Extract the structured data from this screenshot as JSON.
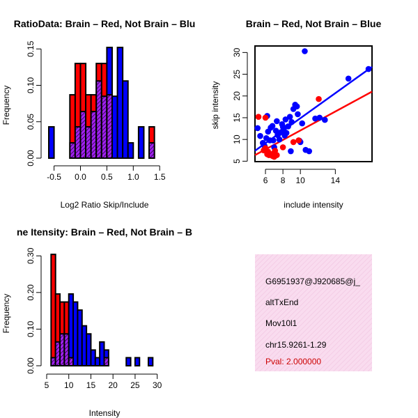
{
  "colors": {
    "red": "#ff0000",
    "blue": "#0000ff",
    "purple": "#a020f0",
    "info_bg": "#f9dcef",
    "pval": "#cc0000"
  },
  "chart_data": [
    {
      "type": "bar",
      "subtype": "overlaid-histogram",
      "title": "RatioData: Brain – Red, Not Brain – Blu",
      "xlabel": "Log2 Ratio Skip/Include",
      "ylabel": "Frequency",
      "xlim": [
        -0.6,
        1.55
      ],
      "ylim": [
        0,
        0.155
      ],
      "xticks": [
        -0.5,
        0.0,
        0.5,
        1.0,
        1.5
      ],
      "xtick_labels": [
        "-0.5",
        "0.0",
        "0.5",
        "1.0",
        "1.5"
      ],
      "yticks": [
        0.0,
        0.05,
        0.1,
        0.15
      ],
      "ytick_labels": [
        "0.00",
        "0.05",
        "0.10",
        "0.15"
      ],
      "bin_width": 0.1,
      "bin_starts": [
        -0.6,
        -0.5,
        -0.4,
        -0.3,
        -0.2,
        -0.1,
        0.0,
        0.1,
        0.2,
        0.3,
        0.4,
        0.5,
        0.6,
        0.7,
        0.8,
        0.9,
        1.0,
        1.1,
        1.2,
        1.3,
        1.4
      ],
      "series": [
        {
          "name": "Brain",
          "color": "red",
          "values": [
            0,
            0,
            0,
            0,
            0.087,
            0.13,
            0.13,
            0.087,
            0.087,
            0.13,
            0.13,
            0.087,
            0,
            0,
            0,
            0,
            0,
            0,
            0,
            0.043,
            0
          ]
        },
        {
          "name": "Not Brain",
          "color": "blue",
          "values": [
            0.043,
            0,
            0,
            0,
            0.021,
            0.043,
            0.064,
            0.043,
            0.064,
            0.106,
            0.085,
            0.152,
            0.085,
            0.152,
            0.106,
            0.021,
            0,
            0.043,
            0,
            0.021,
            0
          ]
        }
      ]
    },
    {
      "type": "scatter",
      "title": "Brain – Red, Not Brain – Blue",
      "xlabel": "include intensity",
      "ylabel": "skip intensity",
      "xlim": [
        4.8,
        18.2
      ],
      "ylim": [
        4.9,
        31.5
      ],
      "xticks": [
        6,
        8,
        10,
        14
      ],
      "xtick_labels": [
        "6",
        "8",
        "10",
        "14"
      ],
      "yticks": [
        5,
        10,
        15,
        20,
        25,
        30
      ],
      "ytick_labels": [
        "5",
        "10",
        "15",
        "20",
        "25",
        "30"
      ],
      "series": [
        {
          "name": "Brain",
          "color": "red",
          "x": [
            5.2,
            6.0,
            5.8,
            6.2,
            6.4,
            6.6,
            6.3,
            6.8,
            6.9,
            7.0,
            7.3,
            7.1,
            8.0,
            9.2,
            9.8,
            12.1,
            6.0
          ],
          "y": [
            15.2,
            8.0,
            7.5,
            6.6,
            6.4,
            6.5,
            7.2,
            6.2,
            6.8,
            6.0,
            6.4,
            7.4,
            8.2,
            9.4,
            9.8,
            19.3,
            15.0
          ],
          "fit": {
            "x": [
              4.8,
              18.2
            ],
            "y": [
              6.4,
              21.0
            ]
          }
        },
        {
          "name": "Not Brain",
          "color": "blue",
          "x": [
            5.1,
            5.4,
            5.7,
            5.9,
            6.1,
            6.3,
            6.5,
            6.6,
            6.8,
            7.0,
            7.2,
            7.3,
            7.5,
            7.6,
            7.8,
            7.9,
            8.0,
            8.2,
            8.3,
            8.4,
            8.6,
            8.8,
            9.0,
            9.2,
            9.4,
            9.6,
            9.9,
            10.2,
            10.6,
            11.0,
            11.7,
            12.2,
            12.8,
            6.2,
            6.9,
            7.4,
            8.1,
            8.9,
            9.7,
            10.0,
            15.5,
            17.8,
            10.5
          ],
          "y": [
            12.6,
            10.8,
            9.2,
            8.5,
            10.3,
            11.8,
            9.8,
            12.7,
            13.1,
            8.2,
            12.0,
            14.2,
            11.3,
            10.0,
            11.7,
            13.5,
            12.9,
            10.9,
            14.6,
            11.5,
            13.0,
            15.2,
            14.0,
            17.0,
            18.0,
            17.6,
            9.7,
            13.7,
            7.6,
            7.3,
            14.8,
            15.0,
            14.5,
            15.4,
            9.8,
            11.0,
            12.1,
            7.3,
            15.8,
            9.4,
            24.0,
            26.2,
            30.3
          ],
          "fit": {
            "x": [
              4.8,
              18.2
            ],
            "y": [
              7.4,
              26.7
            ]
          }
        }
      ]
    },
    {
      "type": "bar",
      "subtype": "overlaid-histogram",
      "title": "ne Itensity: Brain – Red, Not Brain – B",
      "xlabel": "Intensity",
      "ylabel": "Frequency",
      "xlim": [
        5,
        31
      ],
      "ylim": [
        0,
        0.31
      ],
      "xticks": [
        5,
        10,
        15,
        20,
        25,
        30
      ],
      "xtick_labels": [
        "5",
        "10",
        "15",
        "20",
        "25",
        "30"
      ],
      "yticks": [
        0.0,
        0.1,
        0.2,
        0.3
      ],
      "ytick_labels": [
        "0.00",
        "0.10",
        "0.20",
        "0.30"
      ],
      "bin_width": 1,
      "bin_starts": [
        5,
        6,
        7,
        8,
        9,
        10,
        11,
        12,
        13,
        14,
        15,
        16,
        17,
        18,
        19,
        20,
        21,
        22,
        23,
        24,
        25,
        26,
        27,
        28,
        29,
        30
      ],
      "series": [
        {
          "name": "Brain",
          "color": "red",
          "values": [
            0,
            0.304,
            0.196,
            0.174,
            0.174,
            0.022,
            0,
            0,
            0,
            0,
            0,
            0,
            0,
            0.022,
            0,
            0,
            0,
            0,
            0,
            0,
            0,
            0,
            0,
            0,
            0,
            0
          ]
        },
        {
          "name": "Not Brain",
          "color": "blue",
          "values": [
            0,
            0.022,
            0.065,
            0.087,
            0.087,
            0.196,
            0.174,
            0.152,
            0.109,
            0.087,
            0.043,
            0.022,
            0.065,
            0.043,
            0,
            0,
            0,
            0,
            0.022,
            0,
            0.022,
            0,
            0,
            0.022,
            0,
            0
          ]
        }
      ]
    }
  ],
  "info_box": {
    "lines": [
      "G6951937@J920685@j_",
      "altTxEnd",
      "Mov10l1",
      "chr15.9261-1.29"
    ],
    "pval": "Pval: 2.000000"
  }
}
